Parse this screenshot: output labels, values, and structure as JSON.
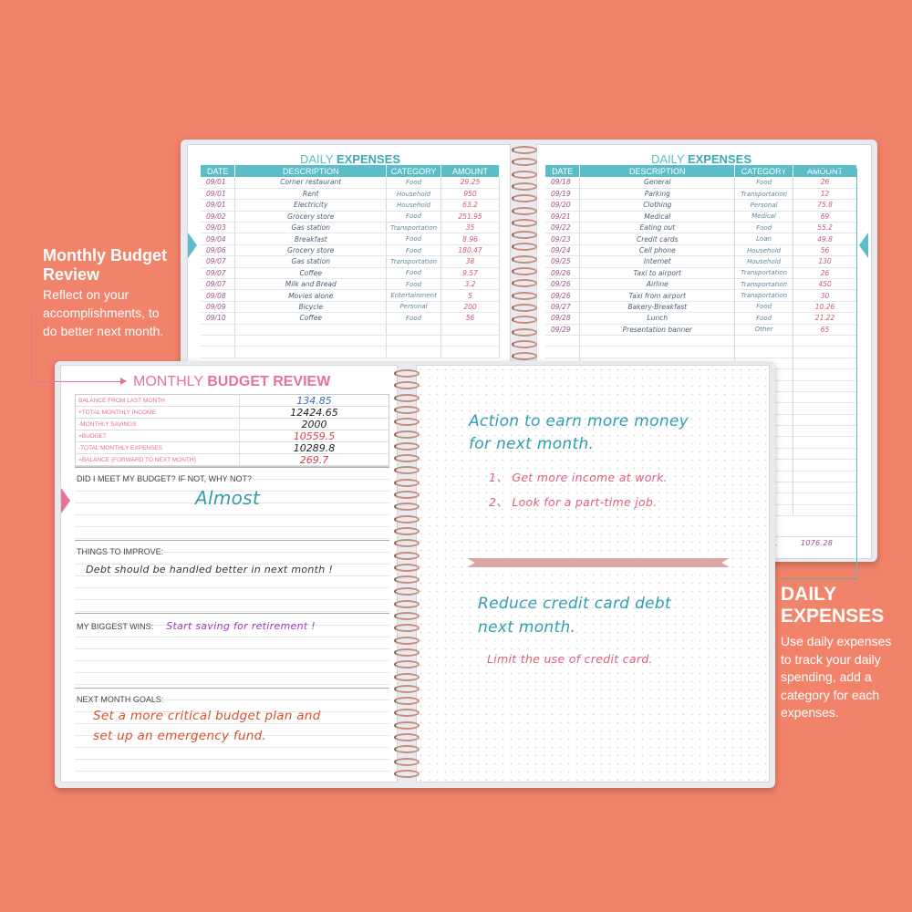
{
  "daily_left": {
    "title_a": "DAILY ",
    "title_b": "EXPENSES",
    "headers": [
      "DATE",
      "DESCRIPTION",
      "CATEGORY",
      "AMOUNT"
    ],
    "rows": [
      [
        "09/01",
        "Corner restaurant",
        "Food",
        "29.25"
      ],
      [
        "09/01",
        "Rent",
        "Household",
        "950"
      ],
      [
        "09/01",
        "Electricity",
        "Household",
        "63.2"
      ],
      [
        "09/02",
        "Grocery store",
        "Food",
        "251.95"
      ],
      [
        "09/03",
        "Gas station",
        "Transportation",
        "35"
      ],
      [
        "09/04",
        "Breakfast",
        "Food",
        "8.96"
      ],
      [
        "09/06",
        "Grocery store",
        "Food",
        "180.47"
      ],
      [
        "09/07",
        "Gas station",
        "Transportation",
        "38"
      ],
      [
        "09/07",
        "Coffee",
        "Food",
        "9.57"
      ],
      [
        "09/07",
        "Milk and Bread",
        "Food",
        "3.2"
      ],
      [
        "09/08",
        "Movies alone",
        "Entertainment",
        "5"
      ],
      [
        "09/09",
        "Bicycle",
        "Personal",
        "200"
      ],
      [
        "09/10",
        "Coffee",
        "Food",
        "56"
      ]
    ]
  },
  "daily_right": {
    "title_a": "DAILY ",
    "title_b": "EXPENSES",
    "headers": [
      "DATE",
      "DESCRIPTION",
      "CATEGORY",
      "AMOUNT"
    ],
    "rows": [
      [
        "09/18",
        "General",
        "Food",
        "26"
      ],
      [
        "09/19",
        "Parking",
        "Transportation",
        "12"
      ],
      [
        "09/20",
        "Clothing",
        "Personal",
        "75.8"
      ],
      [
        "09/21",
        "Medical",
        "Medical",
        "69"
      ],
      [
        "09/22",
        "Eating out",
        "Food",
        "55.2"
      ],
      [
        "09/23",
        "Credit cards",
        "Loan",
        "49.8"
      ],
      [
        "09/24",
        "Cell phone",
        "Household",
        "56"
      ],
      [
        "09/25",
        "Internet",
        "Household",
        "130"
      ],
      [
        "09/26",
        "Taxi to airport",
        "Transportation",
        "26"
      ],
      [
        "09/26",
        "Airline",
        "Transportation",
        "450"
      ],
      [
        "09/26",
        "Taxi from airport",
        "Transportation",
        "30"
      ],
      [
        "09/27",
        "Bakery-Breakfast",
        "Food",
        "10.26"
      ],
      [
        "09/28",
        "Lunch",
        "Food",
        "21.22"
      ],
      [
        "09/29",
        "Presentation banner",
        "Other",
        "65"
      ]
    ],
    "total_label": "TAL",
    "total_value": "1076.28"
  },
  "budget": {
    "title_a": "MONTHLY ",
    "title_b": "BUDGET REVIEW",
    "rows": [
      {
        "label": "BALANCE FROM LAST MONTH",
        "value": "134.85",
        "color": "#3a6fc0"
      },
      {
        "label": "+TOTAL MONTHLY INCOME",
        "value": "12424.65",
        "color": "#222"
      },
      {
        "label": "-MONTHLY SAVINGS",
        "value": "2000",
        "color": "#222"
      },
      {
        "label": "=BUDGET",
        "value": "10559.5",
        "color": "#d0404a"
      },
      {
        "label": "-TOTAL MONTHLY EXPENSES",
        "value": "10289.8",
        "color": "#222"
      },
      {
        "label": "=BALANCE (FORWARD TO NEXT MONTH)",
        "value": "269.7",
        "color": "#d0404a"
      }
    ],
    "met_q": "DID I MEET MY BUDGET? IF NOT, WHY NOT?",
    "met_a": "Almost",
    "improve_q": "THINGS TO IMPROVE:",
    "improve_a": "Debt should be handled better in next month !",
    "wins_q": "MY BIGGEST WINS:",
    "wins_a": "Start saving for retirement !",
    "goals_q": "NEXT MONTH GOALS:",
    "goals_a1": "Set a more critical budget plan and",
    "goals_a2": "set up an emergency fund."
  },
  "notes": {
    "h1a": "Action to earn more money",
    "h1b": "for next month.",
    "l1": "1、 Get more income at work.",
    "l2": "2、 Look for a part-time job.",
    "h2a": "Reduce credit card debt",
    "h2b": "next month.",
    "l3": "Limit the use of credit card."
  },
  "annot_left": {
    "title1": "Monthly Budget",
    "title2": "Review",
    "body": [
      "Reflect on your",
      "accomplishments, to",
      "do better next month."
    ]
  },
  "annot_right": {
    "title1": "DAILY",
    "title2": "EXPENSES",
    "body": [
      "Use daily expenses",
      "to track your daily",
      "spending, add a",
      "category for each",
      "expenses."
    ]
  },
  "colors": {
    "background": "#f2836b",
    "teal": "#5bbdc7",
    "pink": "#e8729a"
  }
}
